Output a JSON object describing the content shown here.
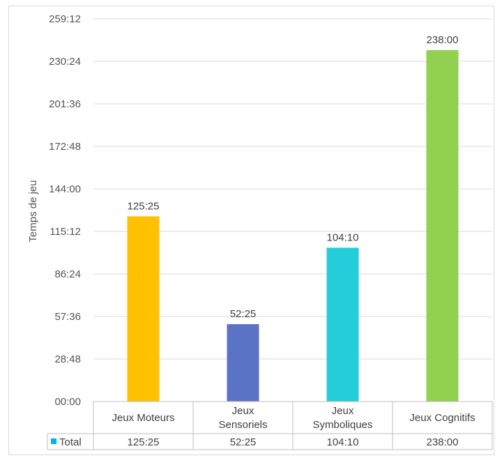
{
  "chart_data": {
    "type": "bar",
    "ylabel": "Temps de jeu",
    "y_ticks": [
      "00:00",
      "28:48",
      "57:36",
      "86:24",
      "115:12",
      "144:00",
      "172:48",
      "201:36",
      "230:24",
      "259:12"
    ],
    "ylim_minutes": [
      0,
      15552
    ],
    "categories": [
      {
        "lines": [
          "Jeux Moteurs"
        ]
      },
      {
        "lines": [
          "Jeux",
          "Sensoriels"
        ]
      },
      {
        "lines": [
          "Jeux",
          "Symboliques"
        ]
      },
      {
        "lines": [
          "Jeux Cognitifs"
        ]
      }
    ],
    "series": [
      {
        "name": "Total",
        "color": "#00b0f0",
        "values_minutes": [
          7525,
          3145,
          6250,
          14280
        ],
        "labels": [
          "125:25",
          "52:25",
          "104:10",
          "238:00"
        ],
        "colors": [
          "#ffc000",
          "#5b73c4",
          "#23cdd9",
          "#92d050"
        ]
      }
    ],
    "legend": "data-table-bottom",
    "grid": true
  }
}
